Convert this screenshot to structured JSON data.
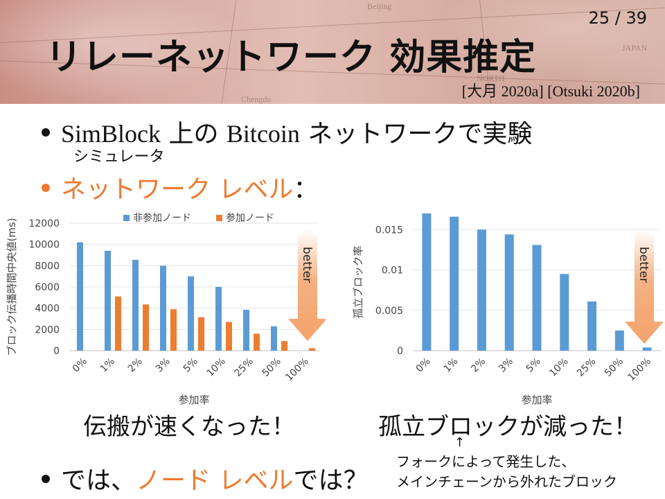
{
  "header": {
    "page_number": "25 / 39",
    "title": "リレーネットワーク 効果推定",
    "references": "[大月 2020a] [Otsuki 2020b]",
    "map_words": [
      "Beijing",
      "JAPAN",
      "NORTH",
      "Chengdu"
    ]
  },
  "bullets": {
    "b1_prefix": "SimBlock",
    "b1_mid": " 上の ",
    "b1_bitcoin": "Bitcoin",
    "b1_suffix": " ネットワークで実験",
    "simulator_note": "シミュレータ",
    "b2_orange": "ネットワーク レベル",
    "b2_suffix": "：",
    "b3_prefix": "では、",
    "b3_orange": "ノード レベル",
    "b3_suffix": "では？"
  },
  "chart_data": [
    {
      "type": "bar",
      "ylabel": "ブロック伝播時間中央値(ms)",
      "xlabel": "参加率",
      "categories": [
        "0%",
        "1%",
        "2%",
        "3%",
        "5%",
        "10%",
        "25%",
        "50%",
        "100%"
      ],
      "ylim": [
        0,
        12000
      ],
      "yticks": [
        "0",
        "2000",
        "4000",
        "6000",
        "8000",
        "10000",
        "12000"
      ],
      "legend_position": "top",
      "series": [
        {
          "name": "非参加ノード",
          "color": "#5b9bd5",
          "values": [
            10200,
            9400,
            8550,
            8000,
            7000,
            6000,
            3850,
            2300,
            null
          ]
        },
        {
          "name": "参加ノード",
          "color": "#ed7d31",
          "values": [
            null,
            5100,
            4350,
            3900,
            3150,
            2700,
            1600,
            900,
            230
          ]
        }
      ],
      "annotation": "better"
    },
    {
      "type": "bar",
      "ylabel": "孤立ブロック率",
      "xlabel": "参加率",
      "categories": [
        "0%",
        "1%",
        "2%",
        "3%",
        "5%",
        "10%",
        "25%",
        "50%",
        "100%"
      ],
      "ylim": [
        0,
        0.017
      ],
      "yticks": [
        "0",
        "0.005",
        "0.01",
        "0.015"
      ],
      "series": [
        {
          "color": "#5b9bd5",
          "values": [
            0.017,
            0.0166,
            0.015,
            0.0144,
            0.0131,
            0.0095,
            0.0061,
            0.0025,
            0.0004
          ]
        }
      ],
      "annotation": "better"
    }
  ],
  "captions": {
    "left": "伝搬が速くなった！",
    "right": "孤立ブロックが減った！",
    "arrow": "↑",
    "note_line1": "フォークによって発生した、",
    "note_line2": "メインチェーンから外れたブロック"
  },
  "colors": {
    "accent_orange": "#ee7a2f",
    "bar_blue": "#5b9bd5",
    "bar_orange": "#ed7d31",
    "arrow_fill": "#f4b183"
  }
}
